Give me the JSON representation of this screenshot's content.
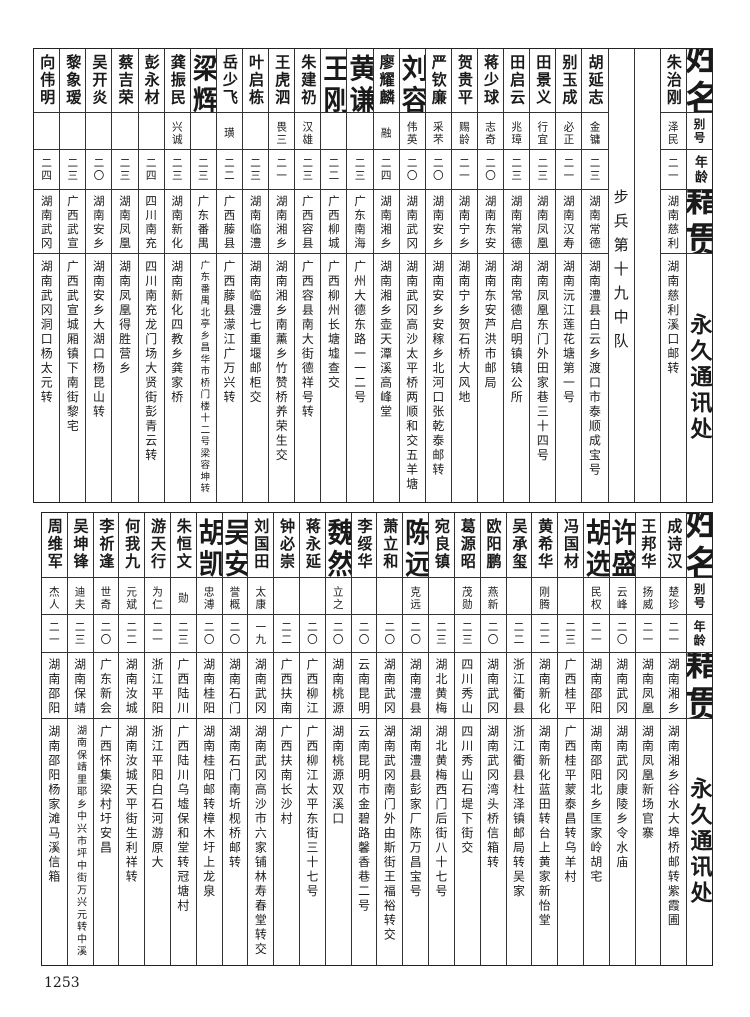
{
  "page_number": "1253",
  "headers": {
    "name": "姓名",
    "alias": "别号",
    "age": "年龄",
    "native": "籍贯",
    "address": "永久通讯处"
  },
  "top_table": {
    "section_label": "步兵第十九中队",
    "lead_rows": [
      {
        "name": "朱治刚",
        "alias": "泽民",
        "age": "二一",
        "native": "湖南慈利",
        "address": "湖南慈利溪口邮转"
      }
    ],
    "rows": [
      {
        "name": "胡延志",
        "alias": "金镛",
        "age": "二三",
        "native": "湖南常德",
        "address": "湖南澧县白云乡渡口市泰顺成宝号"
      },
      {
        "name": "别玉成",
        "alias": "必正",
        "age": "二一",
        "native": "湖南汉寿",
        "address": "湖南沅江莲花塘第一号"
      },
      {
        "name": "田景义",
        "alias": "行宜",
        "age": "二三",
        "native": "湖南凤凰",
        "address": "湖南凤凰东门外田家巷三十四号"
      },
      {
        "name": "田启云",
        "alias": "兆璋",
        "age": "二三",
        "native": "湖南常德",
        "address": "湖南常德启明镇镇公所"
      },
      {
        "name": "蒋少球",
        "alias": "志奇",
        "age": "二〇",
        "native": "湖南东安",
        "address": "湖南东安芦洪市邮局"
      },
      {
        "name": "贺贵平",
        "alias": "赐龄",
        "age": "二一",
        "native": "湖南宁乡",
        "address": "湖南宁乡贺石桥大风地"
      },
      {
        "name": "严钦廉",
        "alias": "采芣",
        "age": "二〇",
        "native": "湖南安乡",
        "address": "湖南安乡安稼乡北河口张乾泰邮转"
      },
      {
        "name": "刘容",
        "alias": "伟英",
        "age": "二〇",
        "native": "湖南武冈",
        "address": "湖南武冈高沙太平桥两顺和交五羊塘"
      },
      {
        "name": "廖耀麟",
        "alias": "融",
        "age": "二四",
        "native": "湖南湘乡",
        "address": "湖南湘乡壶天潭溪高峰堂"
      },
      {
        "name": "黄谦",
        "alias": "",
        "age": "二三",
        "native": "广东南海",
        "address": "广州大德东路一一二号"
      },
      {
        "name": "王刚",
        "alias": "",
        "age": "二二",
        "native": "广西柳城",
        "address": "广西柳州长塘墟查交"
      },
      {
        "name": "朱建礽",
        "alias": "汉雄",
        "age": "二三",
        "native": "广西容县",
        "address": "广西容县南大街德祥号转"
      },
      {
        "name": "王虎泗",
        "alias": "畏三",
        "age": "二一",
        "native": "湖南湘乡",
        "address": "湖南湘乡南薰乡竹赞桥养荣生交"
      },
      {
        "name": "叶启栋",
        "alias": "",
        "age": "二三",
        "native": "湖南临澧",
        "address": "湖南临澧七重堰邮柜交"
      },
      {
        "name": "岳少飞",
        "alias": "璜",
        "age": "二二",
        "native": "广西藤县",
        "address": "广西藤县濛江广万兴转"
      },
      {
        "name": "梁辉",
        "alias": "",
        "age": "二三",
        "native": "广东番禺",
        "address": "广东番禺北亭乡昌华市桥门楼十二号梁容坤转"
      },
      {
        "name": "龚振民",
        "alias": "兴诚",
        "age": "二三",
        "native": "湖南新化",
        "address": "湖南新化四教乡龚家桥"
      },
      {
        "name": "彭永材",
        "alias": "",
        "age": "二四",
        "native": "四川南充",
        "address": "四川南充龙门场大贤街彭青云转"
      },
      {
        "name": "蔡吉荣",
        "alias": "",
        "age": "二三",
        "native": "湖南凤凰",
        "address": "湖南凤凰得胜营乡"
      },
      {
        "name": "吴开炎",
        "alias": "",
        "age": "二〇",
        "native": "湖南安乡",
        "address": "湖南安乡大湖口杨昆山转"
      },
      {
        "name": "黎象瑷",
        "alias": "",
        "age": "二三",
        "native": "广西武宣",
        "address": "广西武宣城厢镇下南街黎宅"
      },
      {
        "name": "向伟明",
        "alias": "",
        "age": "二四",
        "native": "湖南武冈",
        "address": "湖南武冈洞口杨太元转"
      }
    ]
  },
  "bottom_table": {
    "rows": [
      {
        "name": "成诗汉",
        "alias": "楚珍",
        "age": "二一",
        "native": "湖南湘乡",
        "address": "湖南湘乡谷水大埠桥邮转紫霞圃"
      },
      {
        "name": "王邦华",
        "alias": "扬威",
        "age": "二一",
        "native": "湖南凤凰",
        "address": "湖南凤凰新场官寨"
      },
      {
        "name": "许盛",
        "alias": "云峰",
        "age": "二〇",
        "native": "湖南武冈",
        "address": "湖南武冈康陵乡令水庙"
      },
      {
        "name": "胡选",
        "alias": "民权",
        "age": "二一",
        "native": "湖南邵阳",
        "address": "湖南邵阳北乡匡家岭胡宅"
      },
      {
        "name": "冯国材",
        "alias": "",
        "age": "二三",
        "native": "广西桂平",
        "address": "广西桂平蒙泰昌转乌羊村"
      },
      {
        "name": "黄希华",
        "alias": "刚腾",
        "age": "二二",
        "native": "湖南新化",
        "address": "湖南新化蓝田转台上黄家新怡堂"
      },
      {
        "name": "吴承玺",
        "alias": "",
        "age": "二二",
        "native": "浙江衢县",
        "address": "浙江衢县杜泽镇邮局转吴家"
      },
      {
        "name": "欧阳鹏",
        "alias": "燕新",
        "age": "二〇",
        "native": "湖南武冈",
        "address": "湖南武冈湾头桥信箱转"
      },
      {
        "name": "葛源昭",
        "alias": "茂勋",
        "age": "二三",
        "native": "四川秀山",
        "address": "四川秀山石堤下街交"
      },
      {
        "name": "宛良镇",
        "alias": "",
        "age": "二三",
        "native": "湖北黄梅",
        "address": "湖北黄梅西门后街八十七号"
      },
      {
        "name": "陈远",
        "alias": "克远",
        "age": "二〇",
        "native": "湖南澧县",
        "address": "湖南澧县彭家厂陈万昌宝号"
      },
      {
        "name": "萧立和",
        "alias": "",
        "age": "二〇",
        "native": "湖南武冈",
        "address": "湖南武冈南门外由斯街王福裕转交"
      },
      {
        "name": "李绥华",
        "alias": "",
        "age": "二〇",
        "native": "云南昆明",
        "address": "云南昆明市金碧路馨香巷二号"
      },
      {
        "name": "魏然",
        "alias": "立之",
        "age": "二〇",
        "native": "湖南桃源",
        "address": "湖南桃源双溪口"
      },
      {
        "name": "蒋永延",
        "alias": "",
        "age": "二〇",
        "native": "广西柳江",
        "address": "广西柳江太平东街三十七号"
      },
      {
        "name": "钟必崇",
        "alias": "",
        "age": "二二",
        "native": "广西扶南",
        "address": "广西扶南长沙村"
      },
      {
        "name": "刘国田",
        "alias": "太康",
        "age": "一九",
        "native": "湖南武冈",
        "address": "湖南武冈高沙市六家铺林寿春堂转交"
      },
      {
        "name": "吴安",
        "alias": "誉概",
        "age": "二〇",
        "native": "湖南石门",
        "address": "湖南石门南圻枧桥邮转"
      },
      {
        "name": "胡凯",
        "alias": "忠溥",
        "age": "二〇",
        "native": "湖南桂阳",
        "address": "湖南桂阳邮转樟木圩上龙泉"
      },
      {
        "name": "朱恒文",
        "alias": "勋",
        "age": "二三",
        "native": "广西陆川",
        "address": "广西陆川乌墟保和堂转冠塘村"
      },
      {
        "name": "游天行",
        "alias": "为仁",
        "age": "二一",
        "native": "浙江平阳",
        "address": "浙江平阳白石河游原大"
      },
      {
        "name": "何我九",
        "alias": "元斌",
        "age": "二二",
        "native": "湖南汝城",
        "address": "湖南汝城天平街生利祥转"
      },
      {
        "name": "李祈逢",
        "alias": "世奇",
        "age": "二〇",
        "native": "广东新会",
        "address": "广西怀集梁村圩安昌"
      },
      {
        "name": "吴坤锋",
        "alias": "迪夫",
        "age": "二三",
        "native": "湖南保靖",
        "address": "湖南保靖里耶乡中兴市坪中街万兴元转中溪"
      },
      {
        "name": "周维军",
        "alias": "杰人",
        "age": "二一",
        "native": "湖南邵阳",
        "address": "湖南邵阳杨家滩马溪信箱"
      }
    ]
  }
}
